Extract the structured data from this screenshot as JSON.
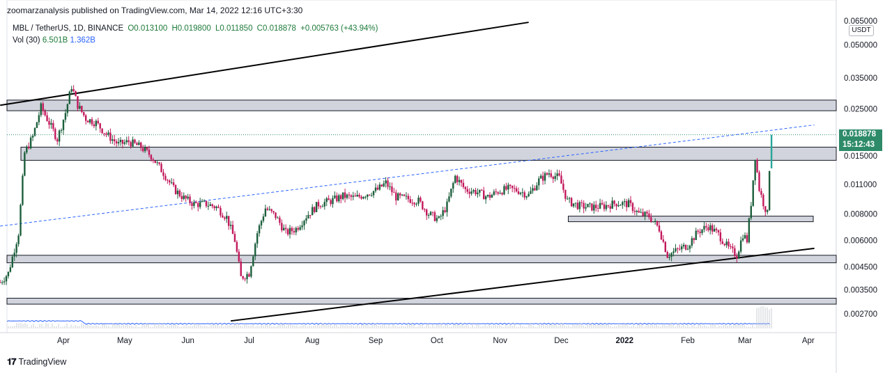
{
  "header": {
    "publisher": "zoomarzanalysis published on TradingView.com, Mar 14, 2022 12:16 UTC+3:30"
  },
  "legend": {
    "symbol": "MBL / TetherUS, 1D, BINANCE",
    "open": "O0.013100",
    "high": "H0.019800",
    "low": "L0.011850",
    "close": "C0.018878",
    "change": "+0.005763 (+43.94%)",
    "vol_label": "Vol (30)",
    "vol_value_1": "6.501B",
    "vol_value_2": "1.362B"
  },
  "price_axis": {
    "currency": "USDT",
    "last_price": "0.018878",
    "countdown": "15:12:43"
  },
  "branding": {
    "name": "TradingView"
  },
  "colors": {
    "up": "#26a69a",
    "down": "#c2185b",
    "candle_up_dark": "#1b5e3b",
    "trendline": "#000000",
    "dashed": "#2962ff",
    "zone_fill": "#d1d4dc",
    "last_price_bg": "#2e8b6a"
  },
  "chart_data": {
    "type": "candlestick",
    "scale": "log",
    "ylim": [
      0.0025,
      0.067
    ],
    "y_ticks": [
      "0.065000",
      "0.050000",
      "0.035000",
      "0.025000",
      "0.015000",
      "0.011000",
      "0.008000",
      "0.006000",
      "0.004500",
      "0.003500",
      "0.002700"
    ],
    "y_tick_values": [
      0.065,
      0.05,
      0.035,
      0.025,
      0.015,
      0.011,
      0.008,
      0.006,
      0.0045,
      0.0035,
      0.0027
    ],
    "x_ticks": [
      "Apr",
      "May",
      "Jun",
      "Jul",
      "Aug",
      "Sep",
      "Oct",
      "Nov",
      "Dec",
      "2022",
      "Feb",
      "Mar",
      "Apr"
    ],
    "x_tick_dates": [
      "2021-04-01",
      "2021-05-01",
      "2021-06-01",
      "2021-07-01",
      "2021-08-01",
      "2021-09-01",
      "2021-10-01",
      "2021-11-01",
      "2021-12-01",
      "2022-01-01",
      "2022-02-01",
      "2022-03-01",
      "2022-04-01"
    ],
    "last_close": 0.018878,
    "series": [
      {
        "name": "MBL / TetherUS",
        "points": [
          [
            "2021-03-01",
            0.0038
          ],
          [
            "2021-03-05",
            0.0042
          ],
          [
            "2021-03-10",
            0.0065
          ],
          [
            "2021-03-13",
            0.0155
          ],
          [
            "2021-03-17",
            0.0185
          ],
          [
            "2021-03-21",
            0.0255
          ],
          [
            "2021-03-25",
            0.0215
          ],
          [
            "2021-03-29",
            0.018
          ],
          [
            "2021-04-02",
            0.024
          ],
          [
            "2021-04-05",
            0.032
          ],
          [
            "2021-04-08",
            0.026
          ],
          [
            "2021-04-12",
            0.0225
          ],
          [
            "2021-04-17",
            0.0215
          ],
          [
            "2021-04-22",
            0.019
          ],
          [
            "2021-04-28",
            0.017
          ],
          [
            "2021-05-03",
            0.0175
          ],
          [
            "2021-05-09",
            0.0165
          ],
          [
            "2021-05-14",
            0.015
          ],
          [
            "2021-05-20",
            0.0125
          ],
          [
            "2021-05-25",
            0.0105
          ],
          [
            "2021-05-30",
            0.0095
          ],
          [
            "2021-06-04",
            0.0089
          ],
          [
            "2021-06-10",
            0.0089
          ],
          [
            "2021-06-15",
            0.0086
          ],
          [
            "2021-06-20",
            0.0077
          ],
          [
            "2021-06-24",
            0.006
          ],
          [
            "2021-06-27",
            0.004
          ],
          [
            "2021-07-01",
            0.0042
          ],
          [
            "2021-07-05",
            0.0065
          ],
          [
            "2021-07-09",
            0.0085
          ],
          [
            "2021-07-14",
            0.0078
          ],
          [
            "2021-07-19",
            0.0065
          ],
          [
            "2021-07-24",
            0.0068
          ],
          [
            "2021-07-29",
            0.0078
          ],
          [
            "2021-08-04",
            0.0089
          ],
          [
            "2021-08-10",
            0.0092
          ],
          [
            "2021-08-16",
            0.0097
          ],
          [
            "2021-08-22",
            0.0095
          ],
          [
            "2021-08-28",
            0.01
          ],
          [
            "2021-09-02",
            0.0104
          ],
          [
            "2021-09-06",
            0.0112
          ],
          [
            "2021-09-11",
            0.0096
          ],
          [
            "2021-09-17",
            0.0094
          ],
          [
            "2021-09-22",
            0.0092
          ],
          [
            "2021-09-27",
            0.008
          ],
          [
            "2021-10-02",
            0.0075
          ],
          [
            "2021-10-06",
            0.0088
          ],
          [
            "2021-10-10",
            0.012
          ],
          [
            "2021-10-15",
            0.0104
          ],
          [
            "2021-10-20",
            0.0102
          ],
          [
            "2021-10-26",
            0.0096
          ],
          [
            "2021-10-31",
            0.0102
          ],
          [
            "2021-11-05",
            0.0105
          ],
          [
            "2021-11-10",
            0.0103
          ],
          [
            "2021-11-15",
            0.0098
          ],
          [
            "2021-11-20",
            0.0115
          ],
          [
            "2021-11-25",
            0.0125
          ],
          [
            "2021-11-30",
            0.0118
          ],
          [
            "2021-12-04",
            0.0092
          ],
          [
            "2021-12-10",
            0.0087
          ],
          [
            "2021-12-16",
            0.0086
          ],
          [
            "2021-12-22",
            0.0087
          ],
          [
            "2021-12-28",
            0.009
          ],
          [
            "2022-01-03",
            0.0089
          ],
          [
            "2022-01-08",
            0.008
          ],
          [
            "2022-01-13",
            0.0078
          ],
          [
            "2022-01-18",
            0.0068
          ],
          [
            "2022-01-22",
            0.0051
          ],
          [
            "2022-01-27",
            0.0054
          ],
          [
            "2022-02-01",
            0.0057
          ],
          [
            "2022-02-06",
            0.0066
          ],
          [
            "2022-02-11",
            0.007
          ],
          [
            "2022-02-16",
            0.0064
          ],
          [
            "2022-02-21",
            0.0055
          ],
          [
            "2022-02-25",
            0.0051
          ],
          [
            "2022-02-28",
            0.0064
          ],
          [
            "2022-03-02",
            0.006
          ],
          [
            "2022-03-04",
            0.009
          ],
          [
            "2022-03-06",
            0.015
          ],
          [
            "2022-03-08",
            0.0105
          ],
          [
            "2022-03-10",
            0.009
          ],
          [
            "2022-03-12",
            0.008
          ],
          [
            "2022-03-13",
            0.0131
          ],
          [
            "2022-03-14",
            0.018878
          ]
        ]
      }
    ],
    "horizontal_zones": [
      [
        0.0245,
        0.0275
      ],
      [
        0.0143,
        0.0165
      ],
      [
        0.0075,
        0.0078
      ],
      [
        0.0047,
        0.0051
      ],
      [
        0.003,
        0.0032
      ]
    ],
    "trendlines": [
      {
        "style": "solid",
        "from": [
          "2021-03-01",
          0.026
        ],
        "to": [
          "2021-11-15",
          0.064
        ]
      },
      {
        "style": "solid",
        "from": [
          "2021-06-22",
          0.0025
        ],
        "to": [
          "2022-04-04",
          0.0055
        ]
      },
      {
        "style": "dashed",
        "from": [
          "2021-03-01",
          0.007
        ],
        "to": [
          "2022-04-04",
          0.021
        ]
      }
    ],
    "volume": {
      "label": "Vol (30)",
      "values": [
        "6.501B",
        "1.362B"
      ]
    }
  }
}
